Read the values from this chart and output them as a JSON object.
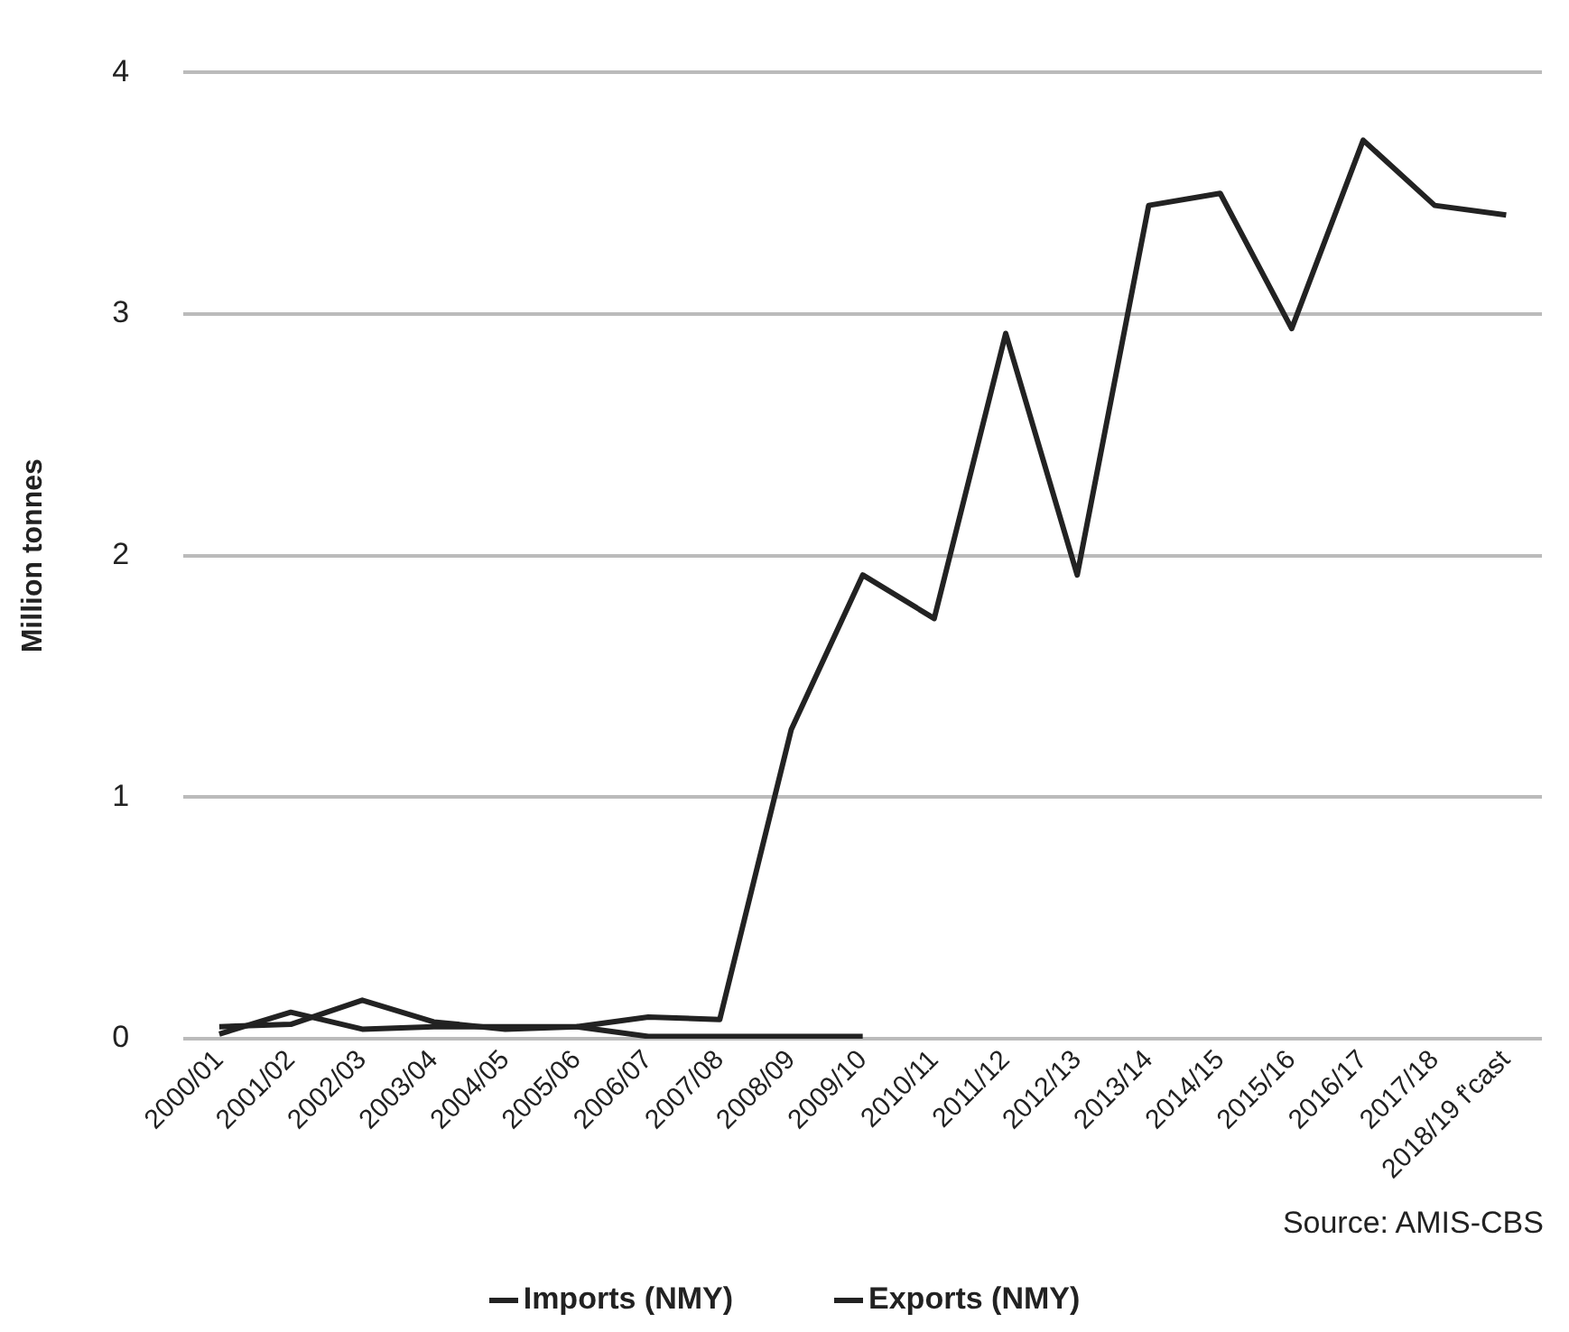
{
  "chart_data": {
    "type": "line",
    "ylabel": "Million tonnes",
    "categories": [
      "2000/01",
      "2001/02",
      "2002/03",
      "2003/04",
      "2004/05",
      "2005/06",
      "2006/07",
      "2007/08",
      "2008/09",
      "2009/10",
      "2010/11",
      "2011/12",
      "2012/13",
      "2013/14",
      "2014/15",
      "2015/16",
      "2016/17",
      "2017/18",
      "2018/19 f'cast"
    ],
    "series": [
      {
        "name": "Imports (NMY)",
        "color": "#222222",
        "values": [
          0.02,
          0.11,
          0.04,
          0.05,
          0.05,
          0.05,
          0.01,
          0.01,
          0.01,
          0.01,
          null,
          null,
          null,
          null,
          null,
          null,
          null,
          null,
          null
        ]
      },
      {
        "name": "Exports (NMY)",
        "color": "#222222",
        "values": [
          0.05,
          0.06,
          0.16,
          0.07,
          0.04,
          0.05,
          0.09,
          0.08,
          1.28,
          1.92,
          1.74,
          2.92,
          1.92,
          3.45,
          3.5,
          2.94,
          3.72,
          3.45,
          3.41
        ]
      }
    ],
    "ylim": [
      0,
      4
    ],
    "yticks": [
      0,
      1,
      2,
      3,
      4
    ],
    "grid": "y",
    "legend": "bottom",
    "marker": "none",
    "line_style": "solid",
    "annotations": [
      "Source: AMIS-CBS"
    ]
  }
}
